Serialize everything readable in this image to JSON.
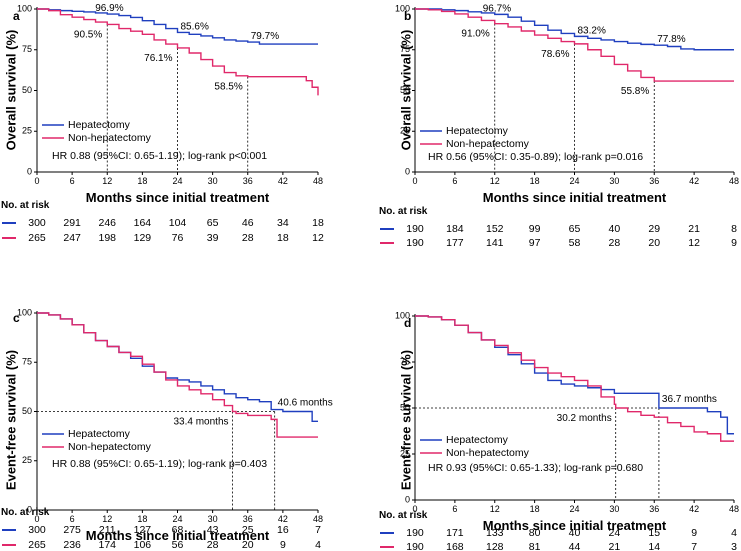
{
  "colors": {
    "hepatectomy": "#1f3fbf",
    "non_hepatectomy": "#e0286a",
    "axis": "#000000"
  },
  "risk_header": "No. at risk",
  "chart_data": [
    {
      "type": "line",
      "panel": "a",
      "ylabel": "Overall survival (%)",
      "xlabel": "Months since initial treatment",
      "xticks": [
        0,
        6,
        12,
        18,
        24,
        30,
        36,
        42,
        48
      ],
      "yticks": [
        0,
        25,
        50,
        75,
        100
      ],
      "xlim": [
        0,
        48
      ],
      "ylim": [
        0,
        100
      ],
      "series": [
        {
          "name": "Hepatectomy",
          "x": [
            0,
            2,
            4,
            6,
            8,
            10,
            12,
            14,
            16,
            18,
            20,
            22,
            24,
            26,
            28,
            30,
            32,
            34,
            36,
            38,
            40,
            42,
            44,
            46,
            48
          ],
          "y": [
            100,
            99.5,
            99,
            98.6,
            98.2,
            97.6,
            96.9,
            96,
            94.8,
            92.8,
            90.5,
            88,
            85.6,
            84.5,
            83.5,
            82.3,
            81,
            80.3,
            79.7,
            78.5,
            78.5,
            78.5,
            78.5,
            78.5,
            78.5
          ]
        },
        {
          "name": "Non-hepatectomy",
          "x": [
            0,
            2,
            4,
            6,
            8,
            10,
            12,
            14,
            16,
            18,
            20,
            22,
            24,
            26,
            28,
            30,
            32,
            34,
            36,
            38,
            40,
            42,
            44,
            46,
            47,
            48
          ],
          "y": [
            100,
            99,
            96.5,
            95,
            93.5,
            92,
            90.5,
            88,
            86.4,
            84.5,
            81,
            78.5,
            76.1,
            73,
            69,
            65,
            61,
            59,
            58.5,
            58.5,
            58.5,
            58.5,
            58.5,
            56,
            52,
            47
          ]
        }
      ],
      "annotations": [
        {
          "x": 12,
          "value": "96.9%",
          "target": "Hepatectomy",
          "y": 96.9
        },
        {
          "x": 12,
          "value": "90.5%",
          "target": "Non-hepatectomy",
          "y": 90.5
        },
        {
          "x": 24,
          "value": "85.6%",
          "target": "Hepatectomy",
          "y": 85.6
        },
        {
          "x": 24,
          "value": "76.1%",
          "target": "Non-hepatectomy",
          "y": 76.1
        },
        {
          "x": 36,
          "value": "79.7%",
          "target": "Hepatectomy",
          "y": 79.7
        },
        {
          "x": 36,
          "value": "58.5%",
          "target": "Non-hepatectomy",
          "y": 58.5
        }
      ],
      "stat": "HR 0.88 (95%CI: 0.65-1.19); log-rank p<0.001",
      "risk": [
        {
          "name": "Hepatectomy",
          "values": [
            300,
            291,
            246,
            164,
            104,
            65,
            46,
            34,
            18
          ]
        },
        {
          "name": "Non-hepatectomy",
          "values": [
            265,
            247,
            198,
            129,
            76,
            39,
            28,
            18,
            12
          ]
        }
      ]
    },
    {
      "type": "line",
      "panel": "b",
      "ylabel": "Overall survival (%)",
      "xlabel": "Months since initial treatment",
      "xticks": [
        0,
        6,
        12,
        18,
        24,
        30,
        36,
        42,
        48
      ],
      "yticks": [
        0,
        25,
        50,
        75,
        100
      ],
      "xlim": [
        0,
        48
      ],
      "ylim": [
        0,
        100
      ],
      "series": [
        {
          "name": "Hepatectomy",
          "x": [
            0,
            2,
            4,
            6,
            8,
            10,
            12,
            14,
            16,
            18,
            20,
            22,
            24,
            26,
            28,
            30,
            32,
            34,
            36,
            38,
            40,
            42,
            44,
            46,
            48
          ],
          "y": [
            100,
            100,
            99.5,
            99,
            98.3,
            97.6,
            96.7,
            95,
            92.5,
            90,
            87,
            85,
            83.2,
            82,
            81,
            80,
            79,
            78.3,
            77.8,
            77,
            75.5,
            75,
            75,
            75,
            75
          ]
        },
        {
          "name": "Non-hepatectomy",
          "x": [
            0,
            2,
            4,
            6,
            8,
            10,
            12,
            14,
            16,
            18,
            20,
            22,
            24,
            26,
            28,
            30,
            32,
            34,
            36,
            38,
            40,
            42,
            44,
            46,
            48
          ],
          "y": [
            100,
            99.5,
            98.5,
            97,
            95,
            93,
            91,
            89,
            86.5,
            84,
            82,
            80,
            78.6,
            75,
            71,
            66,
            62,
            58,
            55.8,
            55.8,
            55.8,
            55.8,
            55.8,
            55.8,
            55.8
          ]
        }
      ],
      "annotations": [
        {
          "x": 12,
          "value": "96.7%",
          "target": "Hepatectomy",
          "y": 96.7
        },
        {
          "x": 12,
          "value": "91.0%",
          "target": "Non-hepatectomy",
          "y": 91.0
        },
        {
          "x": 24,
          "value": "83.2%",
          "target": "Hepatectomy",
          "y": 83.2
        },
        {
          "x": 24,
          "value": "78.6%",
          "target": "Non-hepatectomy",
          "y": 78.6
        },
        {
          "x": 36,
          "value": "77.8%",
          "target": "Hepatectomy",
          "y": 77.8
        },
        {
          "x": 36,
          "value": "55.8%",
          "target": "Non-hepatectomy",
          "y": 55.8
        }
      ],
      "stat": "HR 0.56 (95%CI: 0.35-0.89); log-rank p=0.016",
      "risk": [
        {
          "name": "Hepatectomy",
          "values": [
            190,
            184,
            152,
            99,
            65,
            40,
            29,
            21,
            8
          ]
        },
        {
          "name": "Non-hepatectomy",
          "values": [
            190,
            177,
            141,
            97,
            58,
            28,
            20,
            12,
            9
          ]
        }
      ]
    },
    {
      "type": "line",
      "panel": "c",
      "ylabel": "Event-free survival (%)",
      "xlabel": "Months since initial treatment",
      "xticks": [
        0,
        6,
        12,
        18,
        24,
        30,
        36,
        42,
        48
      ],
      "yticks": [
        0,
        25,
        50,
        75,
        100
      ],
      "xlim": [
        0,
        48
      ],
      "ylim": [
        0,
        100
      ],
      "series": [
        {
          "name": "Hepatectomy",
          "x": [
            0,
            2,
            4,
            6,
            8,
            10,
            12,
            14,
            16,
            18,
            20,
            22,
            24,
            26,
            28,
            30,
            32,
            34,
            36,
            38,
            40,
            42,
            44,
            46,
            47,
            48
          ],
          "y": [
            100,
            99,
            97,
            94,
            90,
            86,
            83,
            80,
            77,
            73,
            70,
            67,
            66,
            65,
            63,
            61,
            59,
            57,
            56,
            55,
            51,
            50,
            50,
            50,
            45,
            45
          ]
        },
        {
          "name": "Non-hepatectomy",
          "x": [
            0,
            2,
            4,
            6,
            8,
            10,
            12,
            14,
            16,
            18,
            20,
            22,
            24,
            26,
            28,
            30,
            32,
            33.4,
            34,
            36,
            38,
            40,
            41,
            42,
            44,
            46,
            48
          ],
          "y": [
            100,
            99,
            97,
            94,
            90,
            86,
            83,
            80,
            78,
            74,
            70,
            66,
            63,
            61,
            59,
            56,
            53,
            50,
            49,
            48,
            48,
            46,
            37,
            37,
            37,
            37,
            37
          ]
        }
      ],
      "medians": [
        {
          "value": "40.6 months",
          "x": 40.6,
          "target": "Hepatectomy"
        },
        {
          "value": "33.4 months",
          "x": 33.4,
          "target": "Non-hepatectomy"
        }
      ],
      "stat": "HR 0.88 (95%CI: 0.65-1.19); log-rank p=0.403",
      "risk": [
        {
          "name": "Hepatectomy",
          "values": [
            300,
            275,
            211,
            127,
            68,
            43,
            25,
            16,
            7
          ]
        },
        {
          "name": "Non-hepatectomy",
          "values": [
            265,
            236,
            174,
            106,
            56,
            28,
            20,
            9,
            4
          ]
        }
      ]
    },
    {
      "type": "line",
      "panel": "d",
      "ylabel": "Event-free survival (%)",
      "xlabel": "Months since initial treatment",
      "xticks": [
        0,
        6,
        12,
        18,
        24,
        30,
        36,
        42,
        48
      ],
      "yticks": [
        0,
        25,
        50,
        75,
        100
      ],
      "xlim": [
        0,
        48
      ],
      "ylim": [
        0,
        100
      ],
      "series": [
        {
          "name": "Hepatectomy",
          "x": [
            0,
            2,
            4,
            6,
            8,
            10,
            12,
            14,
            16,
            18,
            20,
            22,
            24,
            26,
            28,
            30,
            32,
            34,
            36,
            36.7,
            38,
            40,
            42,
            44,
            46,
            47,
            48
          ],
          "y": [
            100,
            99.5,
            98,
            95,
            91,
            87,
            83,
            79,
            74,
            69,
            65,
            63,
            62,
            61,
            60,
            58,
            58,
            58,
            58,
            50,
            50,
            50,
            50,
            48,
            45,
            36,
            36
          ]
        },
        {
          "name": "Non-hepatectomy",
          "x": [
            0,
            2,
            4,
            6,
            8,
            10,
            12,
            14,
            16,
            18,
            20,
            22,
            24,
            26,
            28,
            30,
            30.2,
            32,
            34,
            36,
            38,
            40,
            42,
            44,
            46,
            48
          ],
          "y": [
            100,
            99.5,
            98,
            95,
            91,
            87,
            84,
            80,
            76,
            72,
            69,
            67,
            65,
            62,
            56,
            52,
            50,
            48,
            46,
            45,
            42,
            40,
            37,
            36,
            32,
            32
          ]
        }
      ],
      "medians": [
        {
          "value": "36.7 months",
          "x": 36.7,
          "target": "Hepatectomy"
        },
        {
          "value": "30.2 months",
          "x": 30.2,
          "target": "Non-hepatectomy"
        }
      ],
      "stat": "HR 0.93 (95%CI: 0.65-1.33); log-rank p=0.680",
      "risk": [
        {
          "name": "Hepatectomy",
          "values": [
            190,
            171,
            133,
            80,
            40,
            24,
            15,
            9,
            4
          ]
        },
        {
          "name": "Non-hepatectomy",
          "values": [
            190,
            168,
            128,
            81,
            44,
            21,
            14,
            7,
            3
          ]
        }
      ]
    }
  ]
}
